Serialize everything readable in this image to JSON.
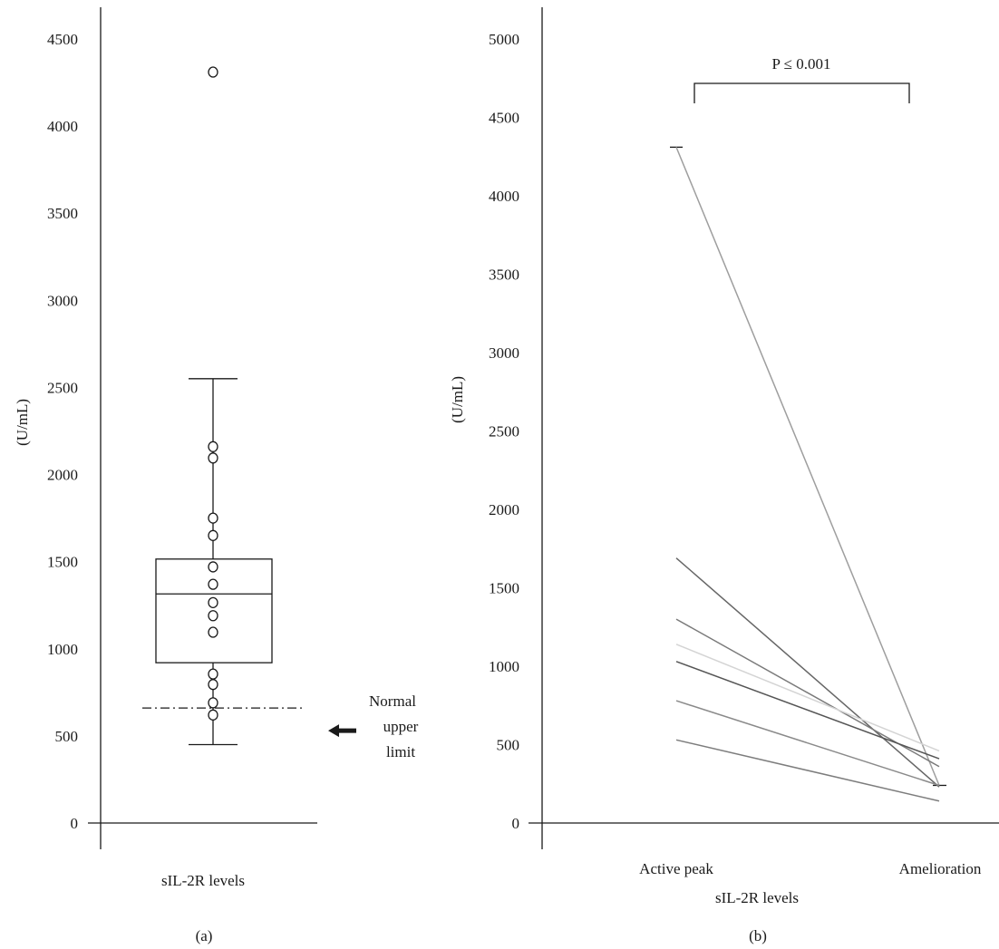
{
  "chart_data": [
    {
      "type": "box",
      "panel_caption": "(a)",
      "ylabel": "(U/mL)",
      "category_label": "sIL-2R levels",
      "ylim": [
        0,
        4700
      ],
      "yticks": [
        0,
        500,
        1000,
        1500,
        2000,
        2500,
        3000,
        3500,
        4000,
        4500
      ],
      "box": {
        "whisker_low": 450,
        "q1": 920,
        "median": 1315,
        "q3": 1515,
        "whisker_high": 2550
      },
      "points": [
        4310,
        2160,
        2095,
        1750,
        1650,
        1470,
        1370,
        1265,
        1190,
        1095,
        855,
        795,
        690,
        620
      ],
      "reference_line": {
        "value": 660,
        "label_lines": [
          "Normal",
          "upper",
          "limit"
        ]
      }
    },
    {
      "type": "line",
      "panel_caption": "(b)",
      "ylabel": "(U/mL)",
      "xlabel": "sIL-2R levels",
      "categories": [
        "Active peak",
        "Amelioration"
      ],
      "ylim": [
        0,
        5100
      ],
      "yticks": [
        0,
        500,
        1000,
        1500,
        2000,
        2500,
        3000,
        3500,
        4000,
        4500,
        5000
      ],
      "annotation": "P ≤ 0.001",
      "series": [
        {
          "values": [
            4310,
            240
          ],
          "color": "#9e9e9e"
        },
        {
          "values": [
            1690,
            230
          ],
          "color": "#666666"
        },
        {
          "values": [
            1300,
            360
          ],
          "color": "#7a7a7a"
        },
        {
          "values": [
            1140,
            460
          ],
          "color": "#d4d4d4"
        },
        {
          "values": [
            1030,
            410
          ],
          "color": "#555555"
        },
        {
          "values": [
            780,
            240
          ],
          "color": "#8a8a8a"
        },
        {
          "values": [
            530,
            140
          ],
          "color": "#7d7d7d"
        }
      ]
    }
  ]
}
